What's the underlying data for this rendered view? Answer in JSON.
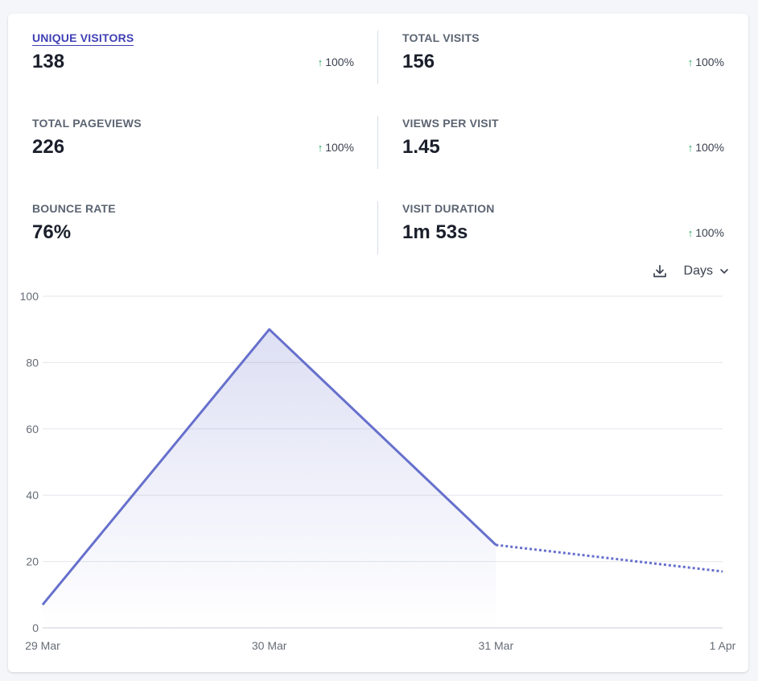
{
  "metrics": [
    {
      "label": "UNIQUE VISITORS",
      "value": "138",
      "change": "100%",
      "active": true
    },
    {
      "label": "TOTAL VISITS",
      "value": "156",
      "change": "100%"
    },
    {
      "label": "TOTAL PAGEVIEWS",
      "value": "226",
      "change": "100%"
    },
    {
      "label": "VIEWS PER VISIT",
      "value": "1.45",
      "change": "100%"
    },
    {
      "label": "BOUNCE RATE",
      "value": "76%",
      "change": ""
    },
    {
      "label": "VISIT DURATION",
      "value": "1m 53s",
      "change": "100%"
    }
  ],
  "controls": {
    "download_icon": "download-icon",
    "interval_label": "Days",
    "chevron_icon": "chevron-down-icon"
  },
  "colors": {
    "line": "#6670cc",
    "active_label": "#3f3fb5",
    "up_arrow": "#22a55a"
  },
  "chart_data": {
    "type": "line",
    "x": [
      "29 Mar",
      "30 Mar",
      "31 Mar",
      "1 Apr"
    ],
    "series": [
      {
        "values": [
          7,
          90,
          25,
          17
        ],
        "dashed_from_index": 2
      }
    ],
    "yticks": [
      0,
      20,
      40,
      60,
      80,
      100
    ],
    "ylim": [
      0,
      100
    ],
    "grid": true,
    "fill": "gradient-area"
  }
}
